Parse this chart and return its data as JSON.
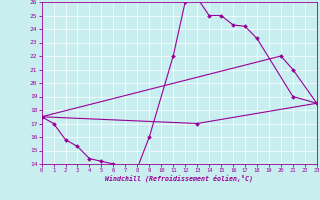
{
  "xlabel": "Windchill (Refroidissement éolien,°C)",
  "xlim": [
    0,
    23
  ],
  "ylim": [
    14,
    26
  ],
  "xticks": [
    0,
    1,
    2,
    3,
    4,
    5,
    6,
    7,
    8,
    9,
    10,
    11,
    12,
    13,
    14,
    15,
    16,
    17,
    18,
    19,
    20,
    21,
    22,
    23
  ],
  "yticks": [
    14,
    15,
    16,
    17,
    18,
    19,
    20,
    21,
    22,
    23,
    24,
    25,
    26
  ],
  "bg_color": "#c8eeef",
  "line_color": "#990099",
  "grid_color": "#ffffff",
  "segments": [
    {
      "x": [
        0,
        1,
        2,
        3,
        4,
        5,
        6,
        7,
        8,
        9,
        11,
        12,
        13,
        14,
        15,
        16,
        17,
        18,
        21,
        23
      ],
      "y": [
        17.5,
        17.0,
        15.8,
        15.3,
        14.4,
        14.2,
        14.0,
        13.8,
        13.7,
        16.0,
        22.0,
        26.0,
        26.3,
        25.0,
        25.0,
        24.3,
        24.2,
        23.3,
        19.0,
        18.5
      ]
    },
    {
      "x": [
        0,
        20,
        21,
        23
      ],
      "y": [
        17.5,
        22.0,
        21.0,
        18.5
      ]
    },
    {
      "x": [
        0,
        13,
        23
      ],
      "y": [
        17.5,
        17.0,
        18.5
      ]
    }
  ]
}
